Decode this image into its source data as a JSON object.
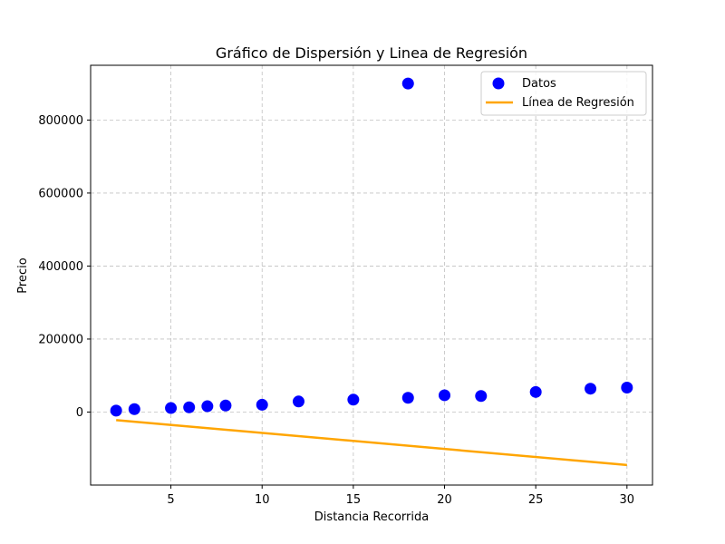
{
  "chart_data": {
    "type": "scatter",
    "title": "Gráfico de Dispersión y Linea de Regresión",
    "xlabel": "Distancia Recorrida",
    "ylabel": "Precio",
    "xlim": [
      0.6,
      31.4
    ],
    "ylim": [
      -200000,
      950000
    ],
    "x_ticks": [
      5,
      10,
      15,
      20,
      25,
      30
    ],
    "x_tick_labels": [
      "5",
      "10",
      "15",
      "20",
      "25",
      "30"
    ],
    "y_ticks": [
      0,
      200000,
      400000,
      600000,
      800000
    ],
    "y_tick_labels": [
      "0",
      "200000",
      "400000",
      "600000",
      "800000"
    ],
    "grid": true,
    "legend_position": "top-right",
    "series": [
      {
        "name": "Datos",
        "kind": "scatter",
        "color": "#0000ff",
        "points": [
          {
            "x": 2,
            "y": 4000
          },
          {
            "x": 3,
            "y": 8000
          },
          {
            "x": 5,
            "y": 11000
          },
          {
            "x": 6,
            "y": 13000
          },
          {
            "x": 7,
            "y": 16000
          },
          {
            "x": 8,
            "y": 18000
          },
          {
            "x": 10,
            "y": 20000
          },
          {
            "x": 12,
            "y": 29000
          },
          {
            "x": 15,
            "y": 34000
          },
          {
            "x": 18,
            "y": 39000
          },
          {
            "x": 18,
            "y": 900000
          },
          {
            "x": 20,
            "y": 46000
          },
          {
            "x": 22,
            "y": 44000
          },
          {
            "x": 25,
            "y": 55000
          },
          {
            "x": 28,
            "y": 64000
          },
          {
            "x": 30,
            "y": 67000
          }
        ]
      },
      {
        "name": "Línea de Regresión",
        "kind": "line",
        "color": "#ffa500",
        "points": [
          {
            "x": 2,
            "y": -22000
          },
          {
            "x": 30,
            "y": -145000
          }
        ]
      }
    ]
  }
}
